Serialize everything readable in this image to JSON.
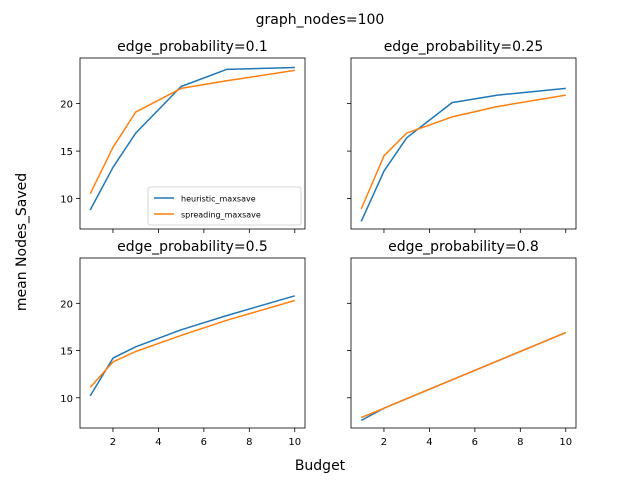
{
  "figure": {
    "suptitle": "graph_nodes=100",
    "xlabel": "Budget",
    "ylabel": "mean Nodes_Saved"
  },
  "legend": {
    "placement": "lower-right of top-left panel",
    "entries": [
      "heuristic_maxsave",
      "spreading_maxsave"
    ]
  },
  "colors": {
    "heuristic_maxsave": "#1f77b4",
    "spreading_maxsave": "#ff7f0e"
  },
  "chart_data": [
    {
      "type": "line",
      "title": "edge_probability=0.1",
      "x": [
        1,
        2,
        3,
        5,
        7,
        10
      ],
      "xlim": [
        0.55,
        10.45
      ],
      "ylim": [
        6.8,
        24.8
      ],
      "xticks": [
        2,
        4,
        6,
        8,
        10
      ],
      "xtick_labels_shown": false,
      "yticks": [
        10,
        15,
        20
      ],
      "ytick_labels_shown": true,
      "series": [
        {
          "name": "heuristic_maxsave",
          "values": [
            8.8,
            13.3,
            16.9,
            21.8,
            23.6,
            23.8
          ]
        },
        {
          "name": "spreading_maxsave",
          "values": [
            10.5,
            15.4,
            19.1,
            21.6,
            22.4,
            23.5
          ]
        }
      ]
    },
    {
      "type": "line",
      "title": "edge_probability=0.25",
      "x": [
        1,
        2,
        3,
        5,
        7,
        10
      ],
      "xlim": [
        0.55,
        10.45
      ],
      "ylim": [
        6.8,
        24.8
      ],
      "xticks": [
        2,
        4,
        6,
        8,
        10
      ],
      "xtick_labels_shown": false,
      "yticks": [
        10,
        15,
        20
      ],
      "ytick_labels_shown": false,
      "series": [
        {
          "name": "heuristic_maxsave",
          "values": [
            7.6,
            12.9,
            16.4,
            20.1,
            20.9,
            21.6
          ]
        },
        {
          "name": "spreading_maxsave",
          "values": [
            8.9,
            14.5,
            16.9,
            18.6,
            19.7,
            20.9
          ]
        }
      ]
    },
    {
      "type": "line",
      "title": "edge_probability=0.5",
      "x": [
        1,
        2,
        3,
        5,
        7,
        10
      ],
      "xlim": [
        0.55,
        10.45
      ],
      "ylim": [
        6.8,
        24.8
      ],
      "xticks": [
        2,
        4,
        6,
        8,
        10
      ],
      "xtick_labels_shown": true,
      "yticks": [
        10,
        15,
        20
      ],
      "ytick_labels_shown": true,
      "series": [
        {
          "name": "heuristic_maxsave",
          "values": [
            10.2,
            14.2,
            15.4,
            17.2,
            18.7,
            20.8
          ]
        },
        {
          "name": "spreading_maxsave",
          "values": [
            11.1,
            13.8,
            14.9,
            16.6,
            18.2,
            20.3
          ]
        }
      ]
    },
    {
      "type": "line",
      "title": "edge_probability=0.8",
      "x": [
        1,
        2,
        3,
        5,
        7,
        10
      ],
      "xlim": [
        0.55,
        10.45
      ],
      "ylim": [
        6.8,
        24.8
      ],
      "xticks": [
        2,
        4,
        6,
        8,
        10
      ],
      "xtick_labels_shown": true,
      "yticks": [
        10,
        15,
        20
      ],
      "ytick_labels_shown": false,
      "series": [
        {
          "name": "heuristic_maxsave",
          "values": [
            7.6,
            8.9,
            9.9,
            11.9,
            13.9,
            16.9
          ]
        },
        {
          "name": "spreading_maxsave",
          "values": [
            7.9,
            8.9,
            9.9,
            11.9,
            13.9,
            16.9
          ]
        }
      ]
    }
  ]
}
